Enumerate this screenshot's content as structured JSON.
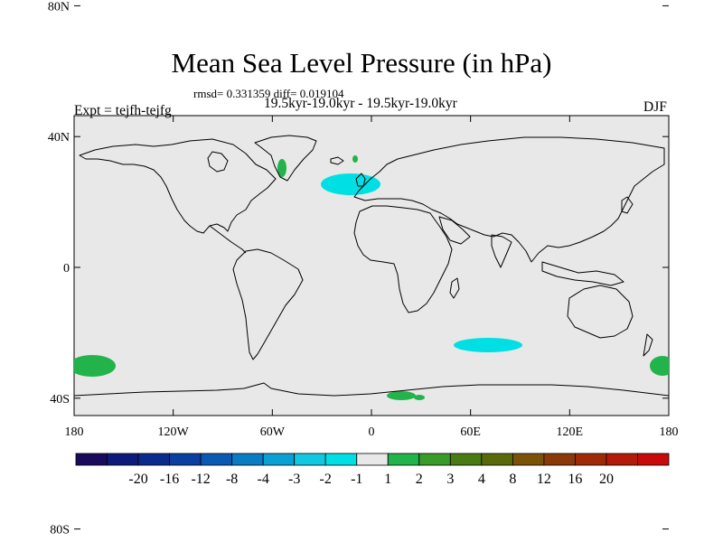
{
  "title": "Mean Sea Level Pressure (in hPa)",
  "stats": "rmsd= 0.331359 diff= 0.019104",
  "periods": "19.5kyr-19.0kyr - 19.5kyr-19.0kyr",
  "experiment": "Expt = tejfh-tejfg",
  "season": "DJF",
  "lat_ticks": [
    "80N",
    "40N",
    "0",
    "40S",
    "80S"
  ],
  "lat_values": [
    80,
    40,
    0,
    -40,
    -80
  ],
  "lon_ticks": [
    "180",
    "120W",
    "60W",
    "0",
    "60E",
    "120E",
    "180"
  ],
  "lon_values": [
    -180,
    -120,
    -60,
    0,
    60,
    120,
    180
  ],
  "colorbar": {
    "labels": [
      "-20",
      "-16",
      "-12",
      "-8",
      "-4",
      "-3",
      "-2",
      "-1",
      "1",
      "2",
      "3",
      "4",
      "8",
      "12",
      "16",
      "20"
    ],
    "colors": [
      "#1a0a5c",
      "#0d1a7a",
      "#0a2a8c",
      "#0a3ea0",
      "#0a5ab4",
      "#0a7cc4",
      "#0aa0d4",
      "#10c8e0",
      "#00e0e4",
      "#e8e8e8",
      "#22b34a",
      "#3a9a2a",
      "#4a7a14",
      "#5a6a0a",
      "#7a5208",
      "#8a3a08",
      "#a02a08",
      "#b41a0a",
      "#c80a0a"
    ]
  },
  "colors": {
    "land_sea_background": "#e8e8e8",
    "cyan": "#00e0e4",
    "green": "#22b34a"
  }
}
